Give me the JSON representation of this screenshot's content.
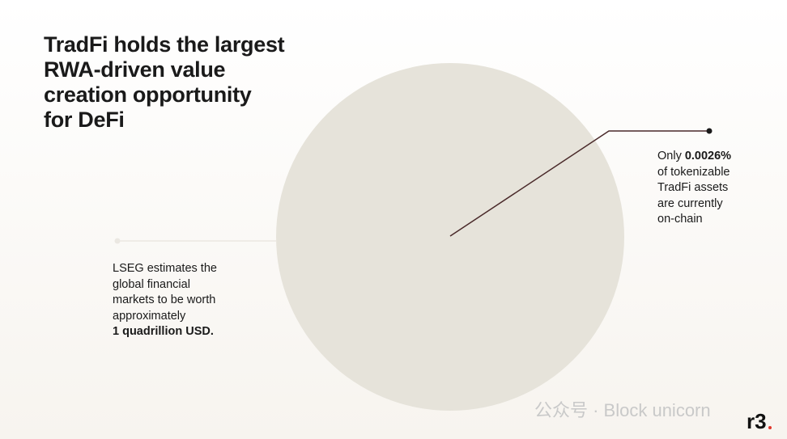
{
  "title": {
    "lines": [
      "TradFi holds the largest",
      "RWA-driven value",
      "creation opportunity",
      "for DeFi"
    ]
  },
  "right_note": {
    "prefix": "Only",
    "highlight": "0.0026%",
    "lines": [
      "of tokenizable",
      "TradFi assets",
      "are currently",
      "on-chain"
    ]
  },
  "left_note": {
    "lines": [
      "LSEG estimates the",
      "global financial",
      "markets to be worth",
      "approximately"
    ],
    "highlight": "1 quadrillion USD."
  },
  "watermark": {
    "text": "公众号 · Block unicorn"
  },
  "logo": {
    "text": "r3"
  }
}
